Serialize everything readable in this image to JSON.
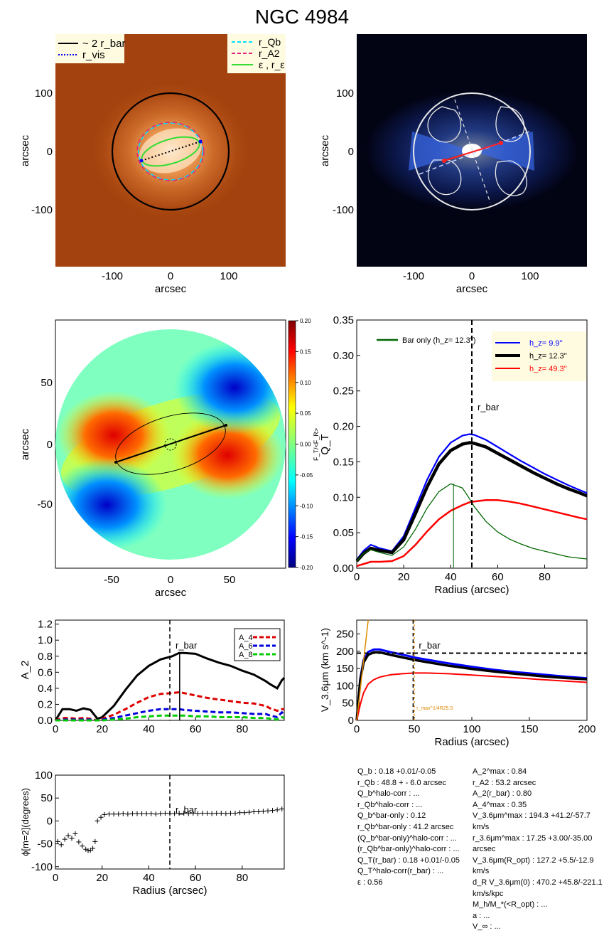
{
  "title": "NGC 4984",
  "panel1": {
    "xlabel": "arcsec",
    "ylabel": "arcsec",
    "xticks": [
      "-100",
      "0",
      "100"
    ],
    "yticks": [
      "100",
      "0",
      "-100"
    ],
    "legend_left": [
      "~ 2 r_bar",
      "r_vis"
    ],
    "legend_right": [
      "r_Qb",
      "r_A2",
      "ε , r_ε"
    ]
  },
  "panel2": {
    "xlabel": "arcsec",
    "ylabel": "arcsec",
    "xticks": [
      "-100",
      "0",
      "100"
    ],
    "yticks": [
      "100",
      "0",
      "-100"
    ]
  },
  "panel3": {
    "xlabel": "arcsec",
    "ylabel": "arcsec",
    "xticks": [
      "-50",
      "0",
      "50"
    ],
    "yticks": [
      "50",
      "0",
      "-50"
    ],
    "colorbar_ticks": [
      "0.20",
      "0.15",
      "0.10",
      "0.05",
      "0.00",
      "-0.05",
      "-0.10",
      "-0.15",
      "-0.20"
    ],
    "colorbar_label": "F_T/<F_R>"
  },
  "panel5": {
    "ylabel": "A_2",
    "yticks": [
      "1.2",
      "1.0",
      "0.8",
      "0.6",
      "0.4",
      "0.2",
      "0.0"
    ],
    "xticks": [
      "0",
      "20",
      "40",
      "60",
      "80"
    ],
    "rbar_label": "r_bar",
    "legend": [
      "A_4",
      "A_6",
      "A_8"
    ]
  },
  "panel6": {
    "xlabel": "Radius (arcsec)",
    "ylabel": "V_3.6μm (km s^-1)",
    "xticks": [
      "0",
      "50",
      "100",
      "150",
      "200"
    ],
    "yticks": [
      "0",
      "50",
      "100",
      "150",
      "200",
      "250"
    ],
    "rbar_label": "r_bar",
    "annotation": "r_max^1/4R25.5"
  },
  "panel7": {
    "xlabel": "Radius (arcsec)",
    "ylabel": "ϕ[m=2](degrees)",
    "xticks": [
      "0",
      "20",
      "40",
      "60",
      "80"
    ],
    "yticks": [
      "100",
      "50",
      "0",
      "-50",
      "-100"
    ],
    "rbar_label": "r_bar"
  },
  "stats_left": [
    "Q_b :  0.18 +0.01/-0.05",
    "r_Qb :  48.8 +   -  6.0 arcsec",
    "Q_b^halo-corr : ...",
    "r_Qb^halo-corr : ...",
    "Q_b^bar-only :  0.12",
    "r_Qb^bar-only :  41.2 arcsec",
    "(Q_b^bar-only)^halo-corr : ...",
    "(r_Qb^bar-only)^halo-corr : ...",
    "Q_T(r_bar) :  0.18 +0.01/-0.05",
    "Q_T^halo-corr(r_bar) : ...",
    "ε :  0.56"
  ],
  "stats_right": [
    "A_2^max :  0.84",
    "r_A2 :  53.2 arcsec",
    "A_2(r_bar) :  0.80",
    "A_4^max :  0.35",
    "V_3.6μm^max :  194.3 +41.2/-57.7 km/s",
    "r_3.6μm^max :  17.25 +3.00/-35.00 arcsec",
    "V_3.6μm(R_opt) :  127.2 +5.5/-12.9 km/s",
    "d_R V_3.6μm(0) :  470.2 +45.8/-221.1 km/s/kpc",
    "M_h/M_*(<R_opt) : ...",
    "a : ...",
    "V_∞ : ..."
  ],
  "chart_data": [
    {
      "type": "image",
      "panel": "top-left",
      "xlabel": "arcsec",
      "ylabel": "arcsec",
      "xlim": [
        -200,
        200
      ],
      "ylim": [
        -200,
        200
      ],
      "legend": [
        "~ 2 r_bar",
        "r_vis",
        "r_Qb",
        "r_A2",
        "ε , r_ε"
      ]
    },
    {
      "type": "image",
      "panel": "top-right",
      "xlabel": "arcsec",
      "ylabel": "arcsec",
      "xlim": [
        -200,
        200
      ],
      "ylim": [
        -200,
        200
      ]
    },
    {
      "type": "heatmap",
      "panel": "middle-left",
      "xlabel": "arcsec",
      "ylabel": "arcsec",
      "xlim": [
        -98,
        98
      ],
      "ylim": [
        -98,
        98
      ],
      "colorbar_range": [
        -0.2,
        0.2
      ],
      "colorbar_label": "F_T/<F_R>"
    },
    {
      "type": "line",
      "panel": "middle-right",
      "xlabel": "Radius (arcsec)",
      "ylabel": "Q_T",
      "xlim": [
        0,
        98
      ],
      "ylim": [
        0,
        0.35
      ],
      "xticks": [
        "0",
        "20",
        "40",
        "60",
        "80"
      ],
      "yticks": [
        "0.00",
        "0.05",
        "0.10",
        "0.15",
        "0.20",
        "0.25",
        "0.30",
        "0.35"
      ],
      "rbar": 49,
      "rbar_label": "r_bar",
      "x": [
        0,
        3,
        6,
        10,
        15,
        20,
        25,
        30,
        35,
        40,
        45,
        48,
        50,
        55,
        60,
        65,
        70,
        75,
        80,
        85,
        90,
        95,
        98
      ],
      "series": [
        {
          "name": "h_z=   9.9''",
          "color": "#0000ff",
          "values": [
            0.012,
            0.025,
            0.033,
            0.028,
            0.024,
            0.045,
            0.085,
            0.125,
            0.157,
            0.177,
            0.187,
            0.189,
            0.188,
            0.181,
            0.171,
            0.161,
            0.151,
            0.142,
            0.133,
            0.125,
            0.117,
            0.11,
            0.106
          ]
        },
        {
          "name": "h_z=  12.3''",
          "color": "#000000",
          "values": [
            0.01,
            0.021,
            0.028,
            0.025,
            0.022,
            0.04,
            0.077,
            0.115,
            0.147,
            0.166,
            0.175,
            0.177,
            0.176,
            0.171,
            0.162,
            0.153,
            0.144,
            0.135,
            0.127,
            0.119,
            0.112,
            0.106,
            0.102
          ]
        },
        {
          "name": "h_z=  49.3''",
          "color": "#ff0000",
          "values": [
            0.003,
            0.006,
            0.009,
            0.009,
            0.01,
            0.017,
            0.033,
            0.052,
            0.069,
            0.081,
            0.089,
            0.093,
            0.094,
            0.096,
            0.096,
            0.094,
            0.091,
            0.087,
            0.083,
            0.079,
            0.075,
            0.071,
            0.069
          ]
        },
        {
          "name": "Bar only (h_z=  12.3'')",
          "color": "#006600",
          "values": [
            0.01,
            0.021,
            0.026,
            0.022,
            0.018,
            0.03,
            0.055,
            0.085,
            0.108,
            0.119,
            0.113,
            0.098,
            0.087,
            0.066,
            0.051,
            0.041,
            0.034,
            0.028,
            0.024,
            0.02,
            0.016,
            0.014,
            0.013
          ]
        }
      ]
    },
    {
      "type": "line",
      "panel": "lower-left",
      "ylabel": "A_2",
      "xlim": [
        0,
        98
      ],
      "ylim": [
        0,
        1.25
      ],
      "rbar": 49,
      "rA2": 53.2,
      "x": [
        0,
        3,
        6,
        9,
        12,
        15,
        18,
        20,
        25,
        30,
        35,
        40,
        45,
        50,
        53,
        55,
        60,
        65,
        70,
        75,
        80,
        85,
        90,
        92,
        95,
        97,
        98
      ],
      "series": [
        {
          "name": "A_2",
          "color": "#000000",
          "values": [
            0.0,
            0.14,
            0.14,
            0.12,
            0.15,
            0.13,
            0.02,
            0.04,
            0.18,
            0.38,
            0.56,
            0.68,
            0.76,
            0.8,
            0.84,
            0.84,
            0.83,
            0.77,
            0.72,
            0.68,
            0.62,
            0.57,
            0.49,
            0.45,
            0.4,
            0.5,
            0.53
          ]
        },
        {
          "name": "A_4",
          "color": "#dd0000",
          "values": [
            0.0,
            0.03,
            0.03,
            0.02,
            0.03,
            0.02,
            0.0,
            0.02,
            0.07,
            0.14,
            0.22,
            0.29,
            0.33,
            0.34,
            0.35,
            0.34,
            0.31,
            0.28,
            0.26,
            0.24,
            0.22,
            0.21,
            0.18,
            0.15,
            0.12,
            0.14,
            0.14
          ]
        },
        {
          "name": "A_6",
          "color": "#0000dd",
          "values": [
            0.0,
            0.01,
            0.01,
            0.01,
            0.01,
            0.01,
            0.0,
            0.01,
            0.03,
            0.06,
            0.09,
            0.12,
            0.14,
            0.14,
            0.14,
            0.13,
            0.12,
            0.11,
            0.1,
            0.1,
            0.09,
            0.08,
            0.08,
            0.06,
            0.04,
            0.1,
            0.08
          ]
        },
        {
          "name": "A_8",
          "color": "#00cc00",
          "values": [
            0.0,
            0.0,
            0.0,
            0.0,
            0.0,
            0.0,
            0.0,
            0.0,
            0.01,
            0.02,
            0.04,
            0.05,
            0.06,
            0.06,
            0.06,
            0.06,
            0.05,
            0.05,
            0.04,
            0.04,
            0.04,
            0.03,
            0.03,
            0.02,
            0.01,
            0.04,
            0.03
          ]
        }
      ]
    },
    {
      "type": "line",
      "panel": "lower-right",
      "xlabel": "Radius (arcsec)",
      "ylabel": "V_3.6μm (km s^-1)",
      "xlim": [
        0,
        200
      ],
      "ylim": [
        0,
        290
      ],
      "rbar": 49,
      "vmax": 194.3,
      "x": [
        0,
        3,
        6,
        10,
        15,
        20,
        25,
        30,
        40,
        50,
        60,
        80,
        100,
        120,
        140,
        160,
        180,
        200
      ],
      "series": [
        {
          "name": "h_z=   9.9''",
          "color": "#0000ff",
          "values": [
            0,
            120,
            175,
            198,
            205,
            205,
            201,
            197,
            190,
            182,
            176,
            165,
            155,
            146,
            139,
            133,
            127,
            122
          ]
        },
        {
          "name": "h_z=  12.3''",
          "color": "#000000",
          "values": [
            0,
            115,
            168,
            190,
            197,
            197,
            193,
            189,
            182,
            175,
            169,
            158,
            149,
            141,
            134,
            128,
            123,
            119
          ]
        },
        {
          "name": "h_z=  49.3''",
          "color": "#ff0000",
          "values": [
            0,
            45,
            80,
            105,
            118,
            125,
            129,
            132,
            135,
            137,
            137,
            135,
            131,
            127,
            123,
            118,
            114,
            110
          ]
        }
      ]
    },
    {
      "type": "scatter",
      "panel": "bottom-left",
      "xlabel": "Radius (arcsec)",
      "ylabel": "ϕ[m=2](degrees)",
      "xlim": [
        0,
        98
      ],
      "ylim": [
        -105,
        100
      ],
      "rbar": 49,
      "x": [
        1,
        2.5,
        4,
        5.5,
        7,
        8.5,
        10,
        11.5,
        13,
        14,
        15,
        16,
        17,
        18,
        19.5,
        21,
        23,
        25,
        27,
        29,
        31,
        33,
        35,
        37,
        39,
        41,
        43,
        45,
        47,
        49,
        51,
        53,
        55,
        57,
        59,
        61,
        63,
        65,
        67,
        69,
        71,
        73,
        75,
        77,
        79,
        81,
        83,
        85,
        87,
        89,
        91,
        93,
        95,
        97
      ],
      "values": [
        -45,
        -52,
        -40,
        -32,
        -38,
        -28,
        -46,
        -55,
        -62,
        -65,
        -64,
        -60,
        -45,
        0,
        8,
        14,
        15,
        15,
        15,
        16,
        15,
        16,
        16,
        16,
        16,
        16,
        15,
        16,
        17,
        16,
        16,
        17,
        17,
        16,
        17,
        16,
        17,
        17,
        16,
        17,
        17,
        16,
        17,
        17,
        18,
        18,
        19,
        20,
        20,
        21,
        22,
        23,
        24,
        26
      ]
    }
  ]
}
